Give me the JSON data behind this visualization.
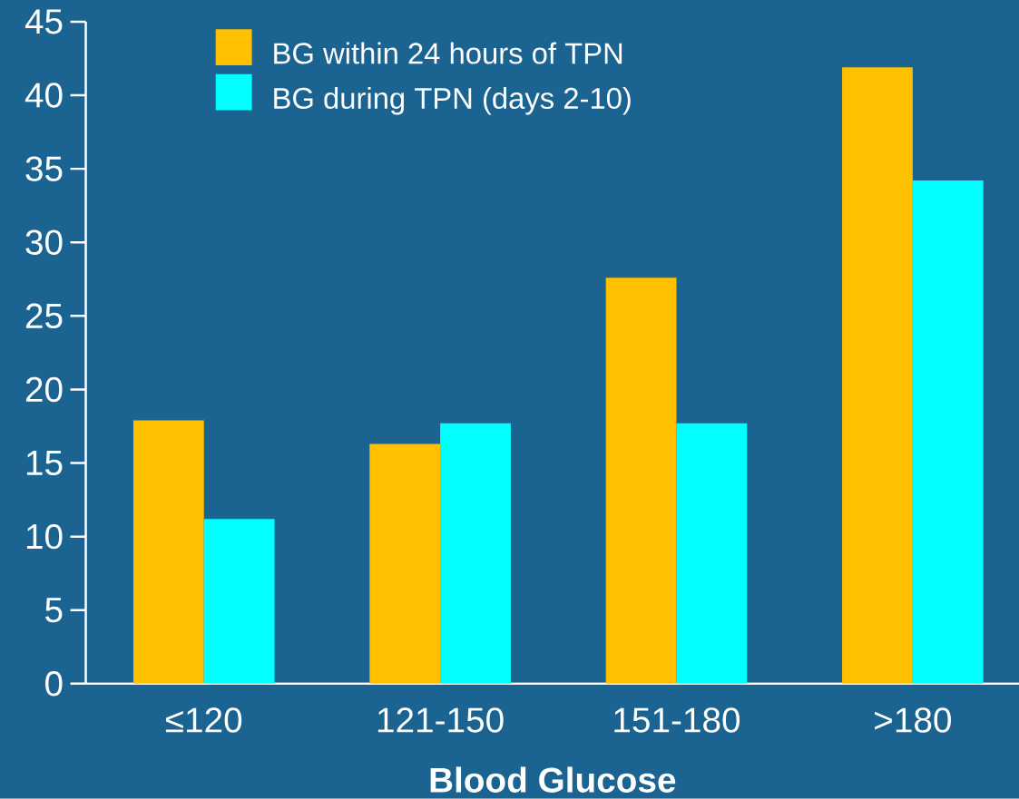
{
  "chart_data": {
    "type": "bar",
    "xlabel": "Blood Glucose",
    "categories": [
      "≤120",
      "121-150",
      "151-180",
      ">180"
    ],
    "series": [
      {
        "name": "BG within 24 hours of TPN",
        "color": "#ffc000",
        "values": [
          17.9,
          16.3,
          27.6,
          41.9
        ]
      },
      {
        "name": "BG during TPN (days 2-10)",
        "color": "#00ffff",
        "values": [
          11.2,
          17.7,
          17.7,
          34.2
        ]
      }
    ],
    "ylim": [
      0,
      45
    ],
    "yticks": [
      0,
      5,
      10,
      15,
      20,
      25,
      30,
      35,
      40,
      45
    ],
    "legend": "top left"
  }
}
